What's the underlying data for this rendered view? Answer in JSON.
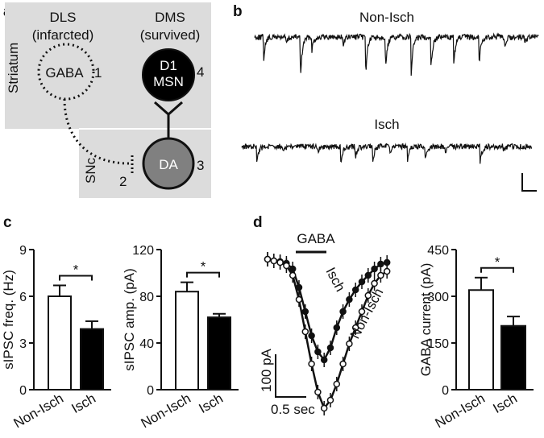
{
  "panel_labels": [
    "a",
    "b",
    "c",
    "d"
  ],
  "diagram": {
    "striatum_label": "Striatum",
    "snc_label": "SNc",
    "dls_title": "DLS",
    "dls_sub": "(infarcted)",
    "dms_title": "DMS",
    "dms_sub": "(survived)",
    "gaba_node": "GABA",
    "d1_line1": "D1",
    "d1_line2": "MSN",
    "da_node": "DA",
    "markers": [
      "1",
      "2",
      "3",
      "4"
    ],
    "colors": {
      "box": "#dcdcdc",
      "d1_fill": "#000000",
      "da_fill": "#808080"
    }
  },
  "traces": {
    "labels": [
      "Non-Isch",
      "Isch"
    ],
    "nonisch_events": [
      [
        0.03,
        38
      ],
      [
        0.11,
        12
      ],
      [
        0.16,
        70
      ],
      [
        0.2,
        22
      ],
      [
        0.31,
        14
      ],
      [
        0.39,
        60
      ],
      [
        0.46,
        55
      ],
      [
        0.55,
        62
      ],
      [
        0.62,
        50
      ],
      [
        0.7,
        48
      ],
      [
        0.79,
        42
      ],
      [
        0.88,
        18
      ],
      [
        0.95,
        12
      ]
    ],
    "isch_events": [
      [
        0.05,
        30
      ],
      [
        0.14,
        8
      ],
      [
        0.26,
        10
      ],
      [
        0.34,
        32
      ],
      [
        0.39,
        18
      ],
      [
        0.45,
        25
      ],
      [
        0.51,
        12
      ],
      [
        0.57,
        24
      ],
      [
        0.63,
        20
      ],
      [
        0.7,
        12
      ],
      [
        0.82,
        26
      ],
      [
        0.9,
        8
      ]
    ]
  },
  "chart_data": [
    {
      "type": "bar",
      "ylabel": "sIPSC freq. (Hz)",
      "categories": [
        "Non-Isch",
        "Isch"
      ],
      "values": [
        6.0,
        3.9
      ],
      "errors": [
        0.7,
        0.5
      ],
      "ylim": [
        0,
        9
      ],
      "yticks": [
        "0",
        "3",
        "6",
        "9"
      ],
      "significance": "*",
      "colors": [
        "#ffffff",
        "#000000"
      ]
    },
    {
      "type": "bar",
      "ylabel": "sIPSC amp. (pA)",
      "categories": [
        "Non-Isch",
        "Isch"
      ],
      "values": [
        84,
        62
      ],
      "errors": [
        8,
        3
      ],
      "ylim": [
        0,
        120
      ],
      "yticks": [
        "0",
        "40",
        "80",
        "120"
      ],
      "significance": "*",
      "colors": [
        "#ffffff",
        "#000000"
      ]
    },
    {
      "type": "line",
      "annotation": "GABA",
      "series": [
        {
          "name": "Isch",
          "x": [
            0,
            0.2,
            0.4,
            0.6,
            0.8,
            1,
            1.2,
            1.4,
            1.6,
            1.8,
            2,
            2.2,
            2.4,
            2.6,
            2.8,
            3,
            3.2,
            3.4,
            3.6,
            3.8
          ],
          "y": [
            0,
            -2,
            -3,
            -5,
            -12,
            -35,
            -65,
            -95,
            -115,
            -125,
            -110,
            -85,
            -65,
            -50,
            -38,
            -28,
            -20,
            -12,
            -6,
            -4
          ],
          "marker": "filled"
        },
        {
          "name": "Non-Isch",
          "x": [
            0,
            0.2,
            0.4,
            0.6,
            0.8,
            1,
            1.2,
            1.4,
            1.6,
            1.8,
            2,
            2.2,
            2.4,
            2.6,
            2.8,
            3,
            3.2,
            3.4,
            3.6,
            3.8
          ],
          "y": [
            0,
            -2,
            -4,
            -8,
            -20,
            -50,
            -90,
            -130,
            -165,
            -185,
            -175,
            -155,
            -130,
            -105,
            -85,
            -65,
            -45,
            -30,
            -20,
            -15
          ],
          "marker": "open"
        }
      ],
      "scalebar_y": "100 pA",
      "scalebar_x": "0.5 sec"
    },
    {
      "type": "bar",
      "ylabel": "GABA current (pA)",
      "categories": [
        "Non-Isch",
        "Isch"
      ],
      "values": [
        320,
        205
      ],
      "errors": [
        40,
        30
      ],
      "ylim": [
        0,
        450
      ],
      "yticks": [
        "0",
        "150",
        "300",
        "450"
      ],
      "significance": "*",
      "colors": [
        "#ffffff",
        "#000000"
      ]
    }
  ]
}
